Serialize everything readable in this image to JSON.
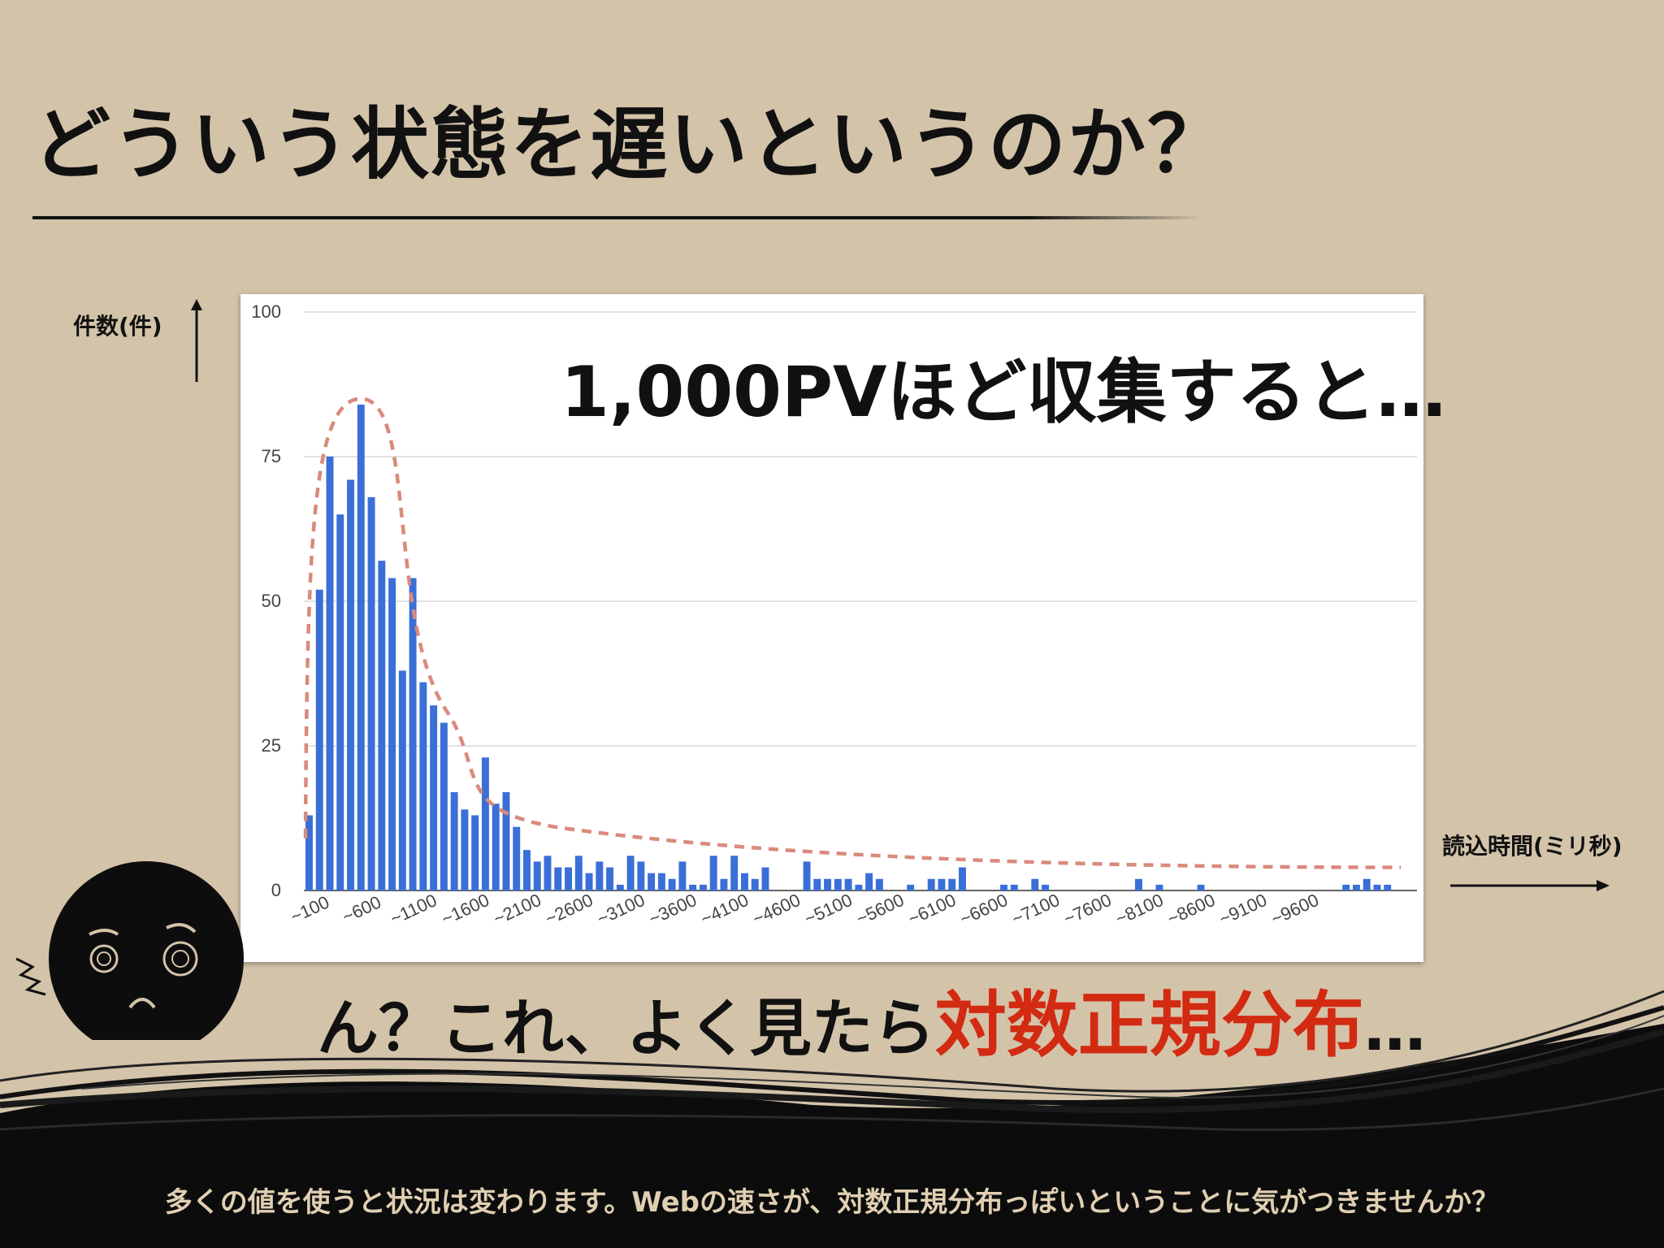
{
  "page": {
    "title": "どういう状態を遅いというのか？",
    "overlay_text": "1,000PVほど収集すると…",
    "caption_prefix": "ん？これ、よく見たら",
    "caption_highlight": "対数正規分布",
    "caption_suffix": "…",
    "y_axis_caption": "件数(件)",
    "x_axis_caption": "読込時間(ミリ秒)",
    "footer": "多くの値を使うと状況は変わります。Webの速さが、対数正規分布っぽいということに気がつきませんか？",
    "colors": {
      "background": "#d3c3a9",
      "bars": "#3a6fd8",
      "curve": "#d98a7c",
      "highlight": "#d32a12",
      "ink": "#111111"
    }
  },
  "chart_data": {
    "type": "bar",
    "ylim": [
      0,
      100
    ],
    "yticks": [
      0,
      25,
      50,
      75,
      100
    ],
    "x_tick_labels": [
      "~100",
      "~600",
      "~1100",
      "~1600",
      "~2100",
      "~2600",
      "~3100",
      "~3600",
      "~4100",
      "~4600",
      "~5100",
      "~5600",
      "~6100",
      "~6600",
      "~7100",
      "~7600",
      "~8100",
      "~8600",
      "~9100",
      "~9600"
    ],
    "bin_width_ms": 100,
    "first_bin": 100,
    "values": [
      13,
      52,
      75,
      65,
      71,
      84,
      68,
      57,
      54,
      38,
      54,
      36,
      32,
      29,
      17,
      14,
      13,
      23,
      15,
      17,
      11,
      7,
      5,
      6,
      4,
      4,
      6,
      3,
      5,
      4,
      1,
      6,
      5,
      3,
      3,
      2,
      5,
      1,
      1,
      6,
      2,
      6,
      3,
      2,
      4,
      0,
      0,
      0,
      5,
      2,
      2,
      2,
      2,
      1,
      3,
      2,
      0,
      0,
      1,
      0,
      2,
      2,
      2,
      4,
      0,
      0,
      0,
      1,
      1,
      0,
      2,
      1,
      0,
      0,
      0,
      0,
      0,
      0,
      0,
      0,
      2,
      0,
      1,
      0,
      0,
      0,
      1,
      0,
      0,
      0,
      0,
      0,
      0,
      0,
      0,
      0,
      0,
      0,
      0,
      0,
      1,
      1,
      2,
      1,
      1
    ],
    "curve_style": "dashed envelope",
    "grid": true
  }
}
